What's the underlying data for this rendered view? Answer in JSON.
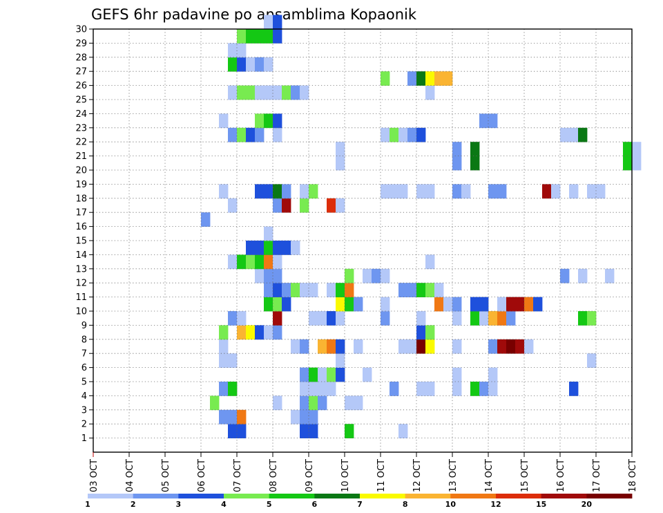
{
  "chart_data": {
    "type": "heatmap",
    "title": "GEFS 6hr padavine po ansamblima Kopaonik",
    "xlabel": "",
    "ylabel": "",
    "x_tick_labels": [
      "03 OCT",
      "04 OCT",
      "05 OCT",
      "06 OCT",
      "07 OCT",
      "08 OCT",
      "09 OCT",
      "10 OCT",
      "11 OCT",
      "12 OCT",
      "13 OCT",
      "14 OCT",
      "15 OCT",
      "16 OCT",
      "17 OCT",
      "18 OCT"
    ],
    "y_tick_labels": [
      "1",
      "2",
      "3",
      "4",
      "5",
      "6",
      "7",
      "8",
      "9",
      "10",
      "11",
      "12",
      "13",
      "14",
      "15",
      "16",
      "17",
      "18",
      "19",
      "20",
      "21",
      "22",
      "23",
      "24",
      "25",
      "26",
      "27",
      "28",
      "29",
      "30"
    ],
    "xlim": [
      "03 OCT",
      "18 OCT"
    ],
    "ylim": [
      0,
      30
    ],
    "x_step_days": 0.25,
    "grid": true,
    "legend": {
      "position": "bottom",
      "labels": [
        "1",
        "2",
        "3",
        "4",
        "5",
        "6",
        "7",
        "8",
        "10",
        "12",
        "15",
        "20"
      ],
      "colors": [
        "#b4c8f8",
        "#6e96f0",
        "#1e50dc",
        "#78eb50",
        "#14c814",
        "#0a7814",
        "#fafa00",
        "#fab432",
        "#f07814",
        "#dc2d0a",
        "#a00a0a",
        "#780000"
      ]
    },
    "cells": [
      [
        1,
        6.75,
        3
      ],
      [
        1,
        7.0,
        3
      ],
      [
        1,
        8.75,
        3
      ],
      [
        1,
        9.0,
        3
      ],
      [
        1,
        10.0,
        5
      ],
      [
        1,
        11.5,
        1
      ],
      [
        2,
        6.5,
        2
      ],
      [
        2,
        6.75,
        2
      ],
      [
        2,
        7.0,
        9
      ],
      [
        2,
        8.5,
        1
      ],
      [
        2,
        8.75,
        2
      ],
      [
        2,
        9.0,
        2
      ],
      [
        3,
        6.25,
        4
      ],
      [
        3,
        8.0,
        1
      ],
      [
        3,
        8.75,
        2
      ],
      [
        3,
        9.0,
        4
      ],
      [
        3,
        9.25,
        2
      ],
      [
        3,
        10.0,
        1
      ],
      [
        3,
        10.25,
        1
      ],
      [
        4,
        6.5,
        2
      ],
      [
        4,
        6.75,
        5
      ],
      [
        4,
        8.75,
        1
      ],
      [
        4,
        9.0,
        1
      ],
      [
        4,
        9.25,
        1
      ],
      [
        4,
        9.5,
        1
      ],
      [
        4,
        11.25,
        2
      ],
      [
        4,
        12.0,
        1
      ],
      [
        4,
        12.25,
        1
      ],
      [
        4,
        13.0,
        1
      ],
      [
        4,
        13.5,
        5
      ],
      [
        4,
        13.75,
        2
      ],
      [
        4,
        14.0,
        1
      ],
      [
        4,
        16.25,
        3
      ],
      [
        5,
        8.75,
        2
      ],
      [
        5,
        9.0,
        5
      ],
      [
        5,
        9.25,
        1
      ],
      [
        5,
        9.5,
        4
      ],
      [
        5,
        9.75,
        3
      ],
      [
        5,
        10.5,
        1
      ],
      [
        5,
        13.0,
        1
      ],
      [
        5,
        14.0,
        1
      ],
      [
        6,
        6.5,
        1
      ],
      [
        6,
        6.75,
        1
      ],
      [
        6,
        9.75,
        1
      ],
      [
        6,
        16.75,
        1
      ],
      [
        7,
        6.5,
        1
      ],
      [
        7,
        8.5,
        1
      ],
      [
        7,
        8.75,
        2
      ],
      [
        7,
        9.25,
        8
      ],
      [
        7,
        9.5,
        9
      ],
      [
        7,
        9.75,
        3
      ],
      [
        7,
        10.25,
        1
      ],
      [
        7,
        11.5,
        1
      ],
      [
        7,
        11.75,
        1
      ],
      [
        7,
        12.0,
        12
      ],
      [
        7,
        12.25,
        7
      ],
      [
        7,
        13.0,
        1
      ],
      [
        7,
        14.0,
        2
      ],
      [
        7,
        14.25,
        11
      ],
      [
        7,
        14.5,
        12
      ],
      [
        7,
        14.75,
        11
      ],
      [
        7,
        15.0,
        1
      ],
      [
        8,
        6.5,
        4
      ],
      [
        8,
        7.0,
        8
      ],
      [
        8,
        7.25,
        7
      ],
      [
        8,
        7.5,
        3
      ],
      [
        8,
        7.75,
        1
      ],
      [
        8,
        8.0,
        2
      ],
      [
        8,
        12.0,
        3
      ],
      [
        8,
        12.25,
        4
      ],
      [
        9,
        6.75,
        2
      ],
      [
        9,
        7.0,
        1
      ],
      [
        9,
        8.0,
        11
      ],
      [
        9,
        9.0,
        1
      ],
      [
        9,
        9.25,
        1
      ],
      [
        9,
        9.5,
        3
      ],
      [
        9,
        9.75,
        1
      ],
      [
        9,
        11.0,
        2
      ],
      [
        9,
        12.0,
        1
      ],
      [
        9,
        13.0,
        1
      ],
      [
        9,
        13.5,
        5
      ],
      [
        9,
        13.75,
        1
      ],
      [
        9,
        14.0,
        8
      ],
      [
        9,
        14.25,
        9
      ],
      [
        9,
        14.5,
        2
      ],
      [
        9,
        16.5,
        5
      ],
      [
        9,
        16.75,
        4
      ],
      [
        10,
        7.75,
        5
      ],
      [
        10,
        8.0,
        4
      ],
      [
        10,
        8.25,
        3
      ],
      [
        10,
        9.75,
        7
      ],
      [
        10,
        10.0,
        5
      ],
      [
        10,
        10.25,
        2
      ],
      [
        10,
        11.0,
        1
      ],
      [
        10,
        12.5,
        9
      ],
      [
        10,
        12.75,
        1
      ],
      [
        10,
        13.0,
        2
      ],
      [
        10,
        13.5,
        3
      ],
      [
        10,
        13.75,
        3
      ],
      [
        10,
        14.25,
        1
      ],
      [
        10,
        14.5,
        11
      ],
      [
        10,
        14.75,
        11
      ],
      [
        10,
        15.0,
        9
      ],
      [
        10,
        15.25,
        3
      ],
      [
        11,
        7.75,
        2
      ],
      [
        11,
        8.0,
        3
      ],
      [
        11,
        8.25,
        2
      ],
      [
        11,
        8.5,
        4
      ],
      [
        11,
        8.75,
        1
      ],
      [
        11,
        9.0,
        1
      ],
      [
        11,
        9.5,
        1
      ],
      [
        11,
        9.75,
        5
      ],
      [
        11,
        10.0,
        9
      ],
      [
        11,
        11.5,
        2
      ],
      [
        11,
        11.75,
        2
      ],
      [
        11,
        12.0,
        5
      ],
      [
        11,
        12.25,
        4
      ],
      [
        11,
        12.5,
        1
      ],
      [
        12,
        7.5,
        1
      ],
      [
        12,
        7.75,
        2
      ],
      [
        12,
        8.0,
        2
      ],
      [
        12,
        10.0,
        4
      ],
      [
        12,
        10.5,
        1
      ],
      [
        12,
        10.75,
        2
      ],
      [
        12,
        11.0,
        1
      ],
      [
        12,
        16.0,
        2
      ],
      [
        12,
        16.5,
        1
      ],
      [
        12,
        17.25,
        1
      ],
      [
        13,
        6.75,
        1
      ],
      [
        13,
        7.0,
        5
      ],
      [
        13,
        7.25,
        4
      ],
      [
        13,
        7.5,
        5
      ],
      [
        13,
        7.75,
        9
      ],
      [
        13,
        8.0,
        1
      ],
      [
        13,
        12.25,
        1
      ],
      [
        14,
        7.25,
        3
      ],
      [
        14,
        7.5,
        3
      ],
      [
        14,
        7.75,
        5
      ],
      [
        14,
        8.0,
        3
      ],
      [
        14,
        8.25,
        3
      ],
      [
        14,
        8.5,
        1
      ],
      [
        15,
        7.75,
        1
      ],
      [
        16,
        6.0,
        2
      ],
      [
        17,
        6.75,
        1
      ],
      [
        17,
        8.0,
        2
      ],
      [
        17,
        8.25,
        11
      ],
      [
        17,
        8.75,
        4
      ],
      [
        17,
        9.5,
        10
      ],
      [
        17,
        9.75,
        1
      ],
      [
        18,
        6.5,
        1
      ],
      [
        18,
        7.5,
        3
      ],
      [
        18,
        7.75,
        3
      ],
      [
        18,
        8.0,
        6
      ],
      [
        18,
        8.25,
        2
      ],
      [
        18,
        8.75,
        1
      ],
      [
        18,
        9.0,
        4
      ],
      [
        18,
        11.0,
        1
      ],
      [
        18,
        11.25,
        1
      ],
      [
        18,
        11.5,
        1
      ],
      [
        18,
        12.0,
        1
      ],
      [
        18,
        12.25,
        1
      ],
      [
        18,
        13.0,
        2
      ],
      [
        18,
        13.25,
        1
      ],
      [
        18,
        14.0,
        2
      ],
      [
        18,
        14.25,
        2
      ],
      [
        18,
        15.5,
        11
      ],
      [
        18,
        15.75,
        1
      ],
      [
        18,
        16.25,
        1
      ],
      [
        18,
        16.75,
        1
      ],
      [
        18,
        17.0,
        1
      ],
      [
        20,
        9.75,
        1
      ],
      [
        20,
        13.0,
        2
      ],
      [
        20,
        13.5,
        6
      ],
      [
        20,
        17.75,
        5
      ],
      [
        20,
        18.0,
        1
      ],
      [
        21,
        9.75,
        1
      ],
      [
        21,
        13.0,
        2
      ],
      [
        21,
        13.5,
        6
      ],
      [
        21,
        17.75,
        5
      ],
      [
        21,
        18.0,
        1
      ],
      [
        22,
        6.75,
        2
      ],
      [
        22,
        7.0,
        4
      ],
      [
        22,
        7.25,
        3
      ],
      [
        22,
        7.5,
        2
      ],
      [
        22,
        8.0,
        1
      ],
      [
        22,
        11.0,
        1
      ],
      [
        22,
        11.25,
        4
      ],
      [
        22,
        11.5,
        1
      ],
      [
        22,
        11.75,
        2
      ],
      [
        22,
        12.0,
        3
      ],
      [
        22,
        16.0,
        1
      ],
      [
        22,
        16.25,
        1
      ],
      [
        22,
        16.5,
        6
      ],
      [
        23,
        6.5,
        1
      ],
      [
        23,
        7.5,
        4
      ],
      [
        23,
        7.75,
        5
      ],
      [
        23,
        8.0,
        3
      ],
      [
        23,
        13.75,
        2
      ],
      [
        23,
        14.0,
        2
      ],
      [
        25,
        6.75,
        1
      ],
      [
        25,
        7.0,
        4
      ],
      [
        25,
        7.25,
        4
      ],
      [
        25,
        7.5,
        1
      ],
      [
        25,
        7.75,
        1
      ],
      [
        25,
        8.0,
        1
      ],
      [
        25,
        8.25,
        4
      ],
      [
        25,
        8.5,
        2
      ],
      [
        25,
        8.75,
        1
      ],
      [
        25,
        12.25,
        1
      ],
      [
        26,
        11.0,
        4
      ],
      [
        26,
        11.75,
        2
      ],
      [
        26,
        12.0,
        6
      ],
      [
        26,
        12.25,
        7
      ],
      [
        26,
        12.5,
        8
      ],
      [
        26,
        12.75,
        8
      ],
      [
        27,
        6.75,
        5
      ],
      [
        27,
        7.0,
        3
      ],
      [
        27,
        7.25,
        1
      ],
      [
        27,
        7.5,
        2
      ],
      [
        27,
        7.75,
        1
      ],
      [
        28,
        6.75,
        1
      ],
      [
        28,
        7.0,
        1
      ],
      [
        29,
        7.0,
        4
      ],
      [
        29,
        7.25,
        5
      ],
      [
        29,
        7.5,
        5
      ],
      [
        29,
        7.75,
        5
      ],
      [
        29,
        8.0,
        3
      ],
      [
        30,
        7.75,
        1
      ],
      [
        30,
        8.0,
        3
      ]
    ]
  }
}
